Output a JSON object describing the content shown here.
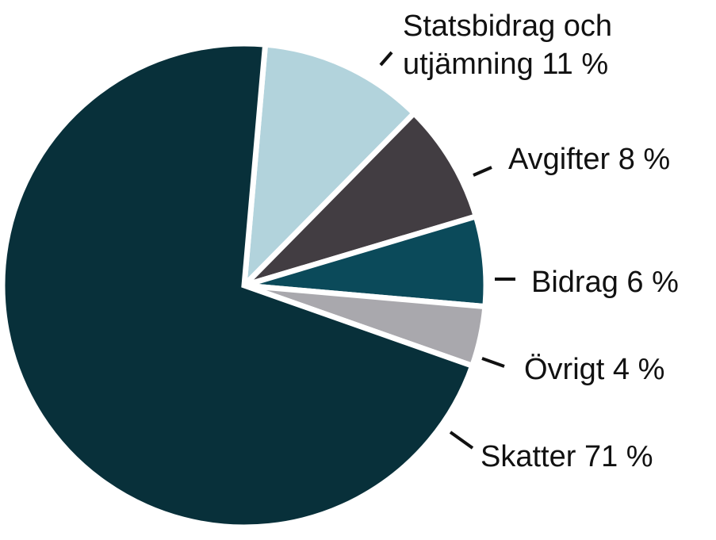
{
  "chart_data": {
    "type": "pie",
    "start_angle_deg": -85,
    "direction": "clockwise",
    "slices": [
      {
        "label_lines": [
          "Statsbidrag och",
          "utjämning 11 %"
        ],
        "value": 11,
        "color": "#b2d3dc"
      },
      {
        "label_lines": [
          "Avgifter 8 %"
        ],
        "value": 8,
        "color": "#423d42"
      },
      {
        "label_lines": [
          "Bidrag 6 %"
        ],
        "value": 6,
        "color": "#0b4a5a"
      },
      {
        "label_lines": [
          "Övrigt 4 %"
        ],
        "value": 4,
        "color": "#a9a8ad"
      },
      {
        "label_lines": [
          "Skatter 71 %"
        ],
        "value": 71,
        "color": "#08303a"
      }
    ],
    "legend": "none"
  }
}
